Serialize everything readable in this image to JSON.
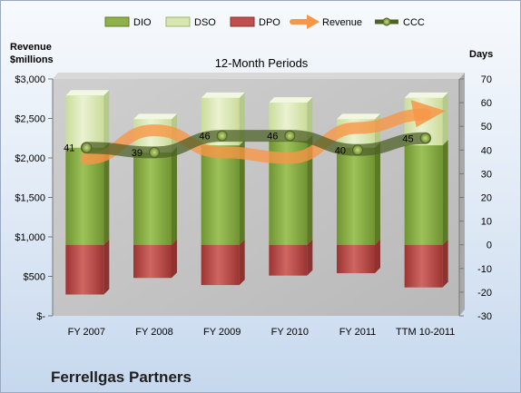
{
  "chart_data": {
    "type": "bar",
    "title": "12-Month Periods",
    "company": "Ferrellgas Partners",
    "left_axis_label": [
      "Revenue",
      "$millions"
    ],
    "right_axis_label": "Days",
    "categories": [
      "FY 2007",
      "FY 2008",
      "FY 2009",
      "FY 2010",
      "FY 2011",
      "TTM 10-2011"
    ],
    "left_ticks": [
      "$-",
      "$500",
      "$1,000",
      "$1,500",
      "$2,000",
      "$2,500",
      "$3,000"
    ],
    "right_ticks": [
      "-30",
      "-20",
      "-10",
      "0",
      "10",
      "20",
      "30",
      "40",
      "50",
      "60",
      "70"
    ],
    "left_axis_range": [
      0,
      3000
    ],
    "right_axis_range": [
      -30,
      70
    ],
    "grid": false,
    "legend_position": "top",
    "series": [
      {
        "name": "DIO",
        "axis": "right",
        "kind": "bar",
        "values": [
          41,
          39,
          42,
          44,
          41,
          42
        ],
        "color": "#8fb14a"
      },
      {
        "name": "DSO",
        "axis": "right",
        "kind": "bar",
        "values": [
          22,
          14,
          20,
          16,
          12,
          20
        ],
        "color": "#d8e6b2"
      },
      {
        "name": "DPO",
        "axis": "right",
        "kind": "bar",
        "values": [
          -21,
          -14,
          -17,
          -13,
          -12,
          -18
        ],
        "color": "#c0504d"
      },
      {
        "name": "Revenue",
        "axis": "left",
        "kind": "arrow-line",
        "values": [
          1990,
          2350,
          2070,
          2000,
          2380,
          2550
        ],
        "color": "#f79646"
      },
      {
        "name": "CCC",
        "axis": "right",
        "kind": "line",
        "values": [
          41,
          39,
          46,
          46,
          40,
          45
        ],
        "labels": [
          "41",
          "39",
          "46",
          "46",
          "40",
          "45"
        ],
        "color": "#4f6228"
      }
    ]
  }
}
